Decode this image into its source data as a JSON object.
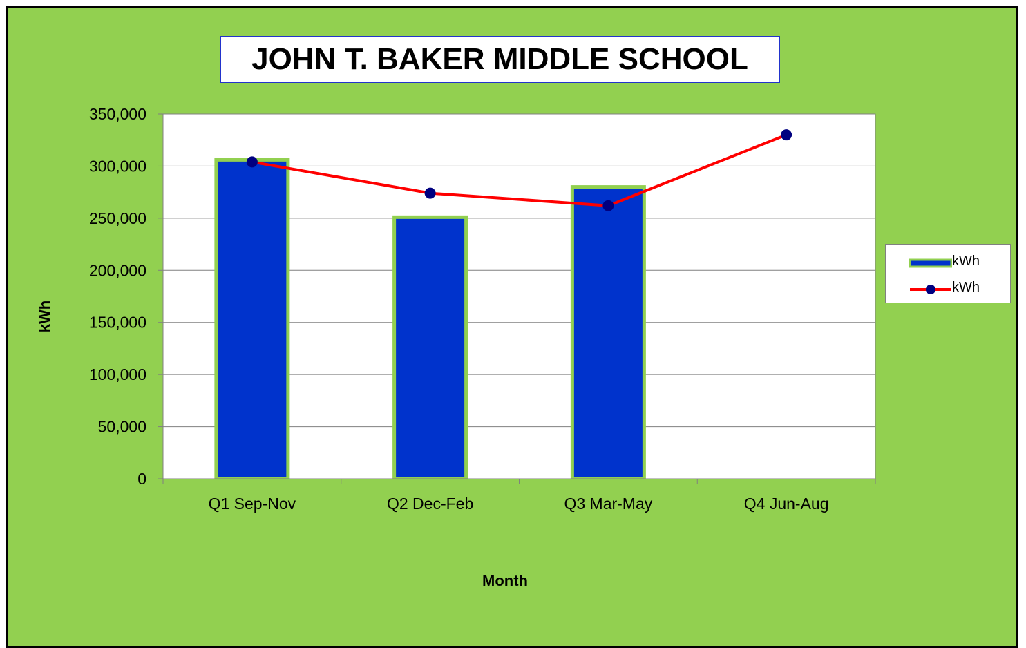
{
  "chart_data": {
    "type": "bar",
    "title": "JOHN T. BAKER MIDDLE SCHOOL",
    "xlabel": "Month",
    "ylabel": "kWh",
    "categories": [
      "Q1 Sep-Nov",
      "Q2 Dec-Feb",
      "Q3 Mar-May",
      "Q4 Jun-Aug"
    ],
    "ylim": [
      0,
      350000
    ],
    "yticks": [
      "0",
      "50,000",
      "100,000",
      "150,000",
      "200,000",
      "250,000",
      "300,000",
      "350,000"
    ],
    "series": [
      {
        "name": "kWh",
        "type": "bar",
        "values": [
          306000,
          251000,
          280000,
          null
        ],
        "color": "#0033cc",
        "border": "#92d050"
      },
      {
        "name": "kWh",
        "type": "line",
        "values": [
          304000,
          274000,
          262000,
          330000
        ],
        "color": "#ff0000",
        "marker_color": "#000080"
      }
    ],
    "grid": "horizontal",
    "legend": "right"
  },
  "colors": {
    "background": "#92d050",
    "plot_area": "#ffffff",
    "bar_fill": "#0033cc",
    "line": "#ff0000",
    "marker": "#000080"
  }
}
